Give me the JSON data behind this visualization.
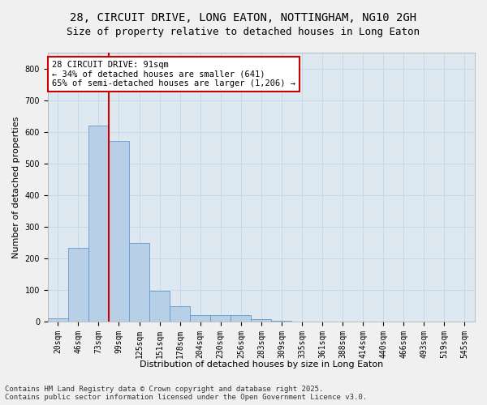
{
  "title_line1": "28, CIRCUIT DRIVE, LONG EATON, NOTTINGHAM, NG10 2GH",
  "title_line2": "Size of property relative to detached houses in Long Eaton",
  "xlabel": "Distribution of detached houses by size in Long Eaton",
  "ylabel": "Number of detached properties",
  "categories": [
    "20sqm",
    "46sqm",
    "73sqm",
    "99sqm",
    "125sqm",
    "151sqm",
    "178sqm",
    "204sqm",
    "230sqm",
    "256sqm",
    "283sqm",
    "309sqm",
    "335sqm",
    "361sqm",
    "388sqm",
    "414sqm",
    "440sqm",
    "466sqm",
    "493sqm",
    "519sqm",
    "545sqm"
  ],
  "values": [
    10,
    233,
    621,
    570,
    250,
    97,
    50,
    22,
    21,
    22,
    8,
    2,
    0,
    0,
    0,
    0,
    0,
    0,
    0,
    0,
    0
  ],
  "bar_color": "#b8cfe8",
  "bar_edge_color": "#6699cc",
  "vline_color": "#cc0000",
  "annotation_text": "28 CIRCUIT DRIVE: 91sqm\n← 34% of detached houses are smaller (641)\n65% of semi-detached houses are larger (1,206) →",
  "annotation_box_color": "#ffffff",
  "annotation_box_edge": "#cc0000",
  "ylim": [
    0,
    850
  ],
  "yticks": [
    0,
    100,
    200,
    300,
    400,
    500,
    600,
    700,
    800
  ],
  "grid_color": "#c8d8e8",
  "background_color": "#dde8f0",
  "fig_background": "#f0f0f0",
  "footer_line1": "Contains HM Land Registry data © Crown copyright and database right 2025.",
  "footer_line2": "Contains public sector information licensed under the Open Government Licence v3.0.",
  "title_fontsize": 10,
  "subtitle_fontsize": 9,
  "axis_label_fontsize": 8,
  "tick_fontsize": 7,
  "annotation_fontsize": 7.5,
  "footer_fontsize": 6.5
}
